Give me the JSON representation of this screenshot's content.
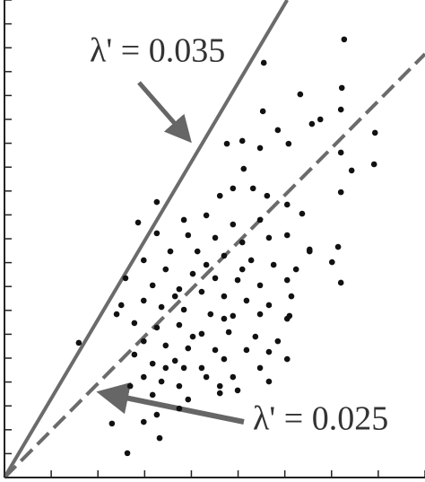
{
  "chart_data": {
    "type": "scatter",
    "xlim": [
      0,
      9
    ],
    "ylim": [
      0,
      20
    ],
    "xticks": [
      0,
      1,
      2,
      3,
      4,
      5,
      6,
      7,
      8,
      9
    ],
    "yticks": [
      0,
      1,
      2,
      3,
      4,
      5,
      6,
      7,
      8,
      9,
      10,
      11,
      12,
      13,
      14,
      15,
      16,
      17,
      18,
      19,
      20
    ],
    "color": "#111111",
    "x": [
      7.27,
      5.55,
      6.33,
      7.22,
      5.53,
      6.76,
      6.58,
      7.2,
      7.93,
      5.85,
      6.08,
      5.09,
      4.76,
      5.47,
      7.2,
      7.43,
      7.91,
      5.12,
      4.89,
      5.32,
      5.62,
      4.61,
      3.26,
      6.05,
      7.2,
      6.37,
      2.86,
      3.84,
      4.32,
      4.89,
      5.47,
      3.93,
      4.51,
      5.09,
      5.66,
      6.05,
      6.53,
      7.14,
      7.01,
      3.55,
      4.13,
      4.7,
      5.28,
      5.76,
      6.24,
      2.98,
      3.45,
      4.03,
      4.51,
      4.99,
      5.47,
      6.05,
      2.59,
      3.17,
      3.74,
      4.22,
      4.7,
      5.18,
      5.66,
      6.14,
      7.2,
      2.98,
      3.36,
      3.84,
      4.41,
      4.89,
      5.47,
      6.05,
      2.4,
      2.78,
      3.26,
      3.74,
      4.22,
      4.8,
      5.37,
      6.1,
      2.98,
      3.45,
      3.93,
      4.51,
      5.18,
      5.66,
      2.78,
      3.17,
      3.65,
      4.22,
      4.7,
      5.47,
      6.05,
      1.59,
      2.98,
      3.36,
      3.74,
      4.32,
      4.89,
      5.66,
      3.17,
      3.93,
      4.61,
      4.99,
      3.26,
      2.3,
      3.32,
      2.63,
      2.98,
      3.74,
      2.5,
      5.09,
      4.32,
      3.65,
      4.7,
      4.03,
      3.45,
      4.61,
      3.84,
      5.85,
      6.53,
      3.26,
      2.69
    ],
    "y": [
      18.35,
      17.37,
      16.05,
      16.32,
      15.34,
      15.0,
      14.81,
      15.41,
      14.44,
      14.55,
      13.98,
      14.1,
      13.98,
      13.8,
      13.61,
      12.86,
      13.12,
      12.93,
      12.11,
      12.11,
      11.8,
      11.8,
      11.54,
      11.43,
      11.95,
      11.05,
      10.68,
      10.79,
      10.98,
      10.6,
      10.79,
      10.15,
      10.04,
      9.85,
      10.04,
      10.15,
      9.55,
      9.66,
      9.02,
      9.47,
      9.47,
      9.29,
      9.1,
      8.91,
      8.72,
      9.1,
      8.72,
      8.53,
      8.35,
      8.27,
      8.05,
      8.27,
      8.35,
      8.05,
      7.89,
      7.78,
      7.59,
      7.41,
      7.22,
      7.59,
      8.16,
      7.41,
      7.14,
      7.03,
      6.84,
      6.77,
      6.84,
      6.65,
      6.84,
      6.47,
      6.28,
      6.39,
      6.02,
      6.09,
      5.9,
      6.77,
      5.71,
      5.53,
      5.41,
      5.34,
      5.34,
      5.26,
      5.15,
      4.77,
      4.89,
      4.59,
      4.96,
      4.59,
      4.96,
      5.64,
      4.21,
      4.02,
      3.83,
      4.21,
      4.21,
      4.02,
      3.46,
      3.27,
      3.53,
      3.65,
      2.63,
      2.26,
      1.65,
      1.02,
      2.33,
      2.89,
      7.22,
      8.72,
      8.91,
      7.59,
      6.65,
      5.9,
      4.59,
      3.83,
      4.59,
      5.71,
      9.47,
      10.23,
      3.83
    ],
    "lines": [
      {
        "label": "λ' = 0.035",
        "x": [
          0,
          6.05
        ],
        "y": [
          0,
          20
        ],
        "color": "#6b6b6b",
        "dashed": false
      },
      {
        "label": "λ' = 0.025",
        "x": [
          0,
          9
        ],
        "y": [
          0,
          17.74
        ],
        "color": "#6b6b6b",
        "dashed": true
      }
    ]
  }
}
